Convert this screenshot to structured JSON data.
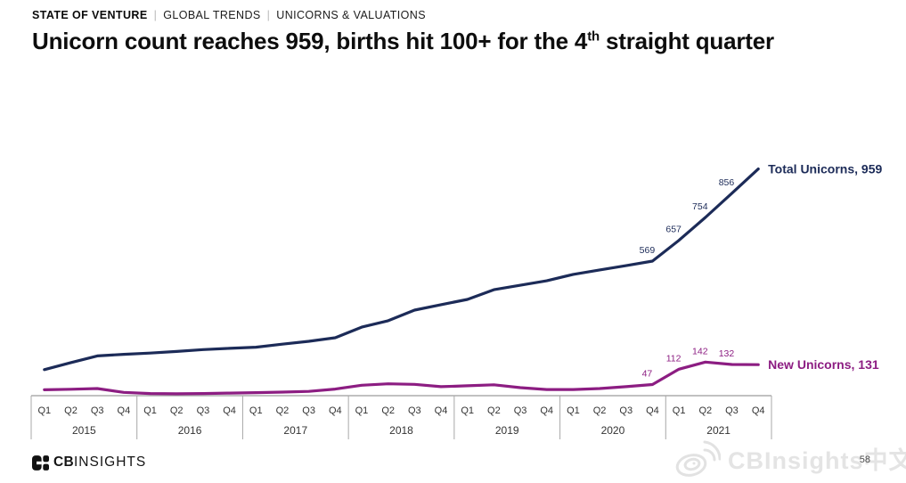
{
  "header": {
    "breadcrumb": [
      "STATE OF VENTURE",
      "GLOBAL TRENDS",
      "UNICORNS & VALUATIONS"
    ],
    "separator": "|",
    "title_pre": "Unicorn count reaches 959, births hit 100+ for the 4",
    "title_sup": "th",
    "title_post": " straight quarter"
  },
  "chart_data": {
    "type": "line",
    "title": "Unicorn count reaches 959, births hit 100+ for the 4th straight quarter",
    "grid": "off",
    "ylim": [
      0,
      1000
    ],
    "legend_position": "line-end-right",
    "years": [
      {
        "label": "2015",
        "quarters": [
          "Q1",
          "Q2",
          "Q3",
          "Q4"
        ]
      },
      {
        "label": "2016",
        "quarters": [
          "Q1",
          "Q2",
          "Q3",
          "Q4"
        ]
      },
      {
        "label": "2017",
        "quarters": [
          "Q1",
          "Q2",
          "Q3",
          "Q4"
        ]
      },
      {
        "label": "2018",
        "quarters": [
          "Q1",
          "Q2",
          "Q3",
          "Q4"
        ]
      },
      {
        "label": "2019",
        "quarters": [
          "Q1",
          "Q2",
          "Q3",
          "Q4"
        ]
      },
      {
        "label": "2020",
        "quarters": [
          "Q1",
          "Q2",
          "Q3",
          "Q4"
        ]
      },
      {
        "label": "2021",
        "quarters": [
          "Q1",
          "Q2",
          "Q3",
          "Q4"
        ]
      }
    ],
    "series": [
      {
        "name": "Total Unicorns",
        "legend_label": "Total Unicorns, 959",
        "color": "#1c2b58",
        "values": [
          110,
          140,
          168,
          175,
          180,
          187,
          195,
          200,
          205,
          218,
          230,
          245,
          290,
          317,
          362,
          385,
          407,
          448,
          467,
          486,
          513,
          532,
          550,
          569,
          657,
          754,
          856,
          959
        ],
        "point_labels": [
          null,
          null,
          null,
          null,
          null,
          null,
          null,
          null,
          null,
          null,
          null,
          null,
          null,
          null,
          null,
          null,
          null,
          null,
          null,
          null,
          null,
          null,
          null,
          "569",
          "657",
          "754",
          "856",
          null
        ]
      },
      {
        "name": "New Unicorns",
        "legend_label": "New Unicorns, 131",
        "color": "#8c1d82",
        "values": [
          25,
          27,
          30,
          14,
          9,
          8,
          9,
          11,
          13,
          15,
          18,
          28,
          44,
          50,
          48,
          38,
          42,
          46,
          34,
          26,
          26,
          30,
          38,
          47,
          112,
          142,
          132,
          131
        ],
        "point_labels": [
          null,
          null,
          null,
          null,
          null,
          null,
          null,
          null,
          null,
          null,
          null,
          null,
          null,
          null,
          null,
          null,
          null,
          null,
          null,
          null,
          null,
          null,
          null,
          "47",
          "112",
          "142",
          "132",
          null
        ]
      }
    ]
  },
  "footer": {
    "logo_cb": "CB",
    "logo_insights": "INSIGHTS",
    "watermark_text": "CBInsights中文",
    "page_number": "58"
  }
}
